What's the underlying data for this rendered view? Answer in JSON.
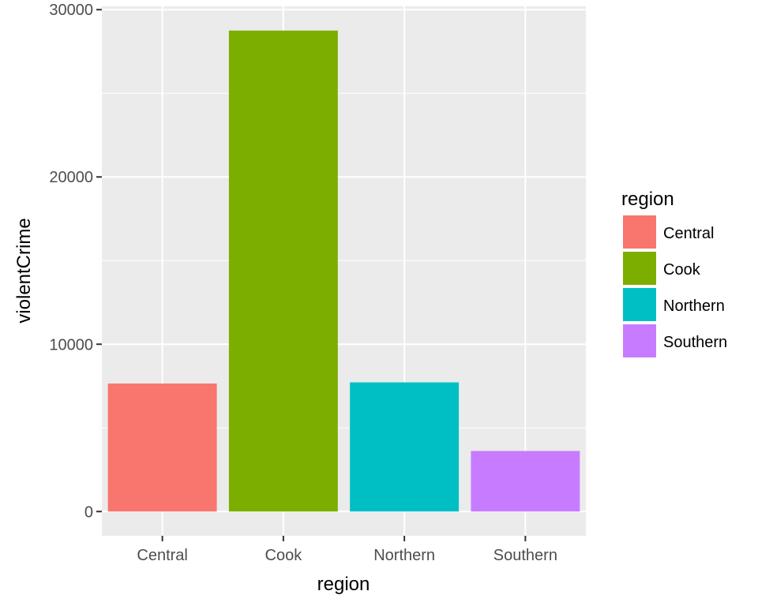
{
  "chart_data": {
    "type": "bar",
    "categories": [
      "Central",
      "Cook",
      "Northern",
      "Southern"
    ],
    "values": [
      7650,
      28750,
      7720,
      3620
    ],
    "colors": [
      "#F8766D",
      "#7CAE00",
      "#00BFC4",
      "#C77CFF"
    ],
    "xlabel": "region",
    "ylabel": "violentCrime",
    "ylim": [
      -1450,
      30200
    ],
    "yticks": [
      0,
      10000,
      20000,
      30000
    ],
    "ytick_labels": [
      "0",
      "10000",
      "20000",
      "30000"
    ],
    "grid": true,
    "panel_background": "#EBEBEB",
    "legend": {
      "title": "region",
      "position": "right",
      "entries": [
        "Central",
        "Cook",
        "Northern",
        "Southern"
      ]
    }
  }
}
